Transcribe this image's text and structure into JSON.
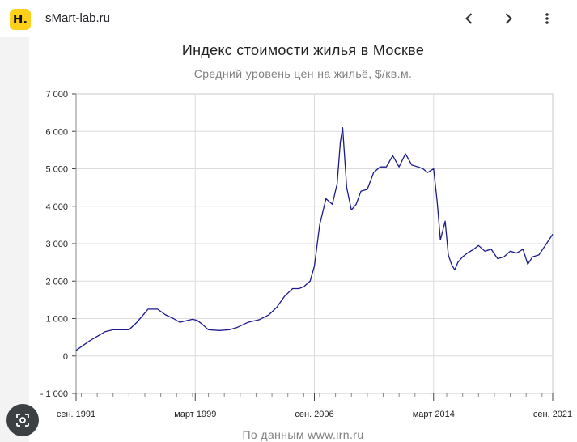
{
  "browser": {
    "site_name": "sMart-lab.ru",
    "logo_letter": "H.",
    "icons": {
      "back": "chevron-left-icon",
      "forward": "chevron-right-icon",
      "menu": "more-vert-icon",
      "lens": "lens-search-icon"
    }
  },
  "chart": {
    "title": "Индекс стоимости жилья в Москве",
    "subtitle": "Средний уровень цен на жильё, $/кв.м.",
    "source": "По данным www.irn.ru"
  },
  "chart_data": {
    "type": "line",
    "title": "Индекс стоимости жилья в Москве",
    "subtitle": "Средний уровень цен на жильё, $/кв.м.",
    "xlabel": "",
    "ylabel": "",
    "ylim": [
      -1000,
      7000
    ],
    "xlim": [
      1991.67,
      2021.67
    ],
    "grid": true,
    "line_color": "#1a1a8c",
    "y_ticks": [
      7000,
      6000,
      5000,
      4000,
      3000,
      2000,
      1000,
      0,
      -1000
    ],
    "y_tick_labels": [
      "7 000",
      "6 000",
      "5 000",
      "4 000",
      "3 000",
      "2 000",
      "1 000",
      "0",
      "- 1 000"
    ],
    "x_ticks": [
      1991.67,
      1999.17,
      2006.67,
      2014.17,
      2021.67
    ],
    "x_tick_labels": [
      "сен. 1991",
      "март 1999",
      "сен. 2006",
      "март 2014",
      "сен. 2021"
    ],
    "x": [
      1991.67,
      1992.5,
      1993.5,
      1994.0,
      1995.0,
      1995.5,
      1996.2,
      1996.8,
      1997.3,
      1997.8,
      1998.2,
      1998.7,
      1999.0,
      1999.3,
      1999.6,
      2000.0,
      2000.7,
      2001.3,
      2001.8,
      2002.5,
      2003.2,
      2003.8,
      2004.3,
      2004.8,
      2005.3,
      2005.7,
      2006.0,
      2006.4,
      2006.67,
      2007.0,
      2007.4,
      2007.8,
      2008.1,
      2008.3,
      2008.45,
      2008.7,
      2009.0,
      2009.3,
      2009.6,
      2010.0,
      2010.4,
      2010.8,
      2011.2,
      2011.6,
      2012.0,
      2012.4,
      2012.8,
      2013.2,
      2013.5,
      2013.8,
      2014.17,
      2014.4,
      2014.6,
      2014.9,
      2015.1,
      2015.3,
      2015.5,
      2015.7,
      2016.0,
      2016.3,
      2016.7,
      2017.0,
      2017.4,
      2017.8,
      2018.2,
      2018.6,
      2019.0,
      2019.4,
      2019.8,
      2020.1,
      2020.4,
      2020.8,
      2021.2,
      2021.67
    ],
    "y": [
      150,
      400,
      650,
      700,
      700,
      900,
      1250,
      1250,
      1100,
      1000,
      900,
      950,
      980,
      950,
      850,
      700,
      680,
      700,
      760,
      900,
      970,
      1100,
      1300,
      1600,
      1800,
      1800,
      1850,
      2000,
      2400,
      3500,
      4200,
      4050,
      4600,
      5700,
      6100,
      4500,
      3900,
      4050,
      4400,
      4450,
      4900,
      5050,
      5050,
      5350,
      5050,
      5400,
      5100,
      5050,
      5000,
      4900,
      5000,
      4100,
      3100,
      3600,
      2700,
      2450,
      2300,
      2500,
      2650,
      2750,
      2850,
      2950,
      2800,
      2850,
      2600,
      2650,
      2800,
      2750,
      2850,
      2450,
      2650,
      2700,
      2950,
      3250
    ],
    "series": [
      {
        "values_ref": "y"
      }
    ]
  }
}
